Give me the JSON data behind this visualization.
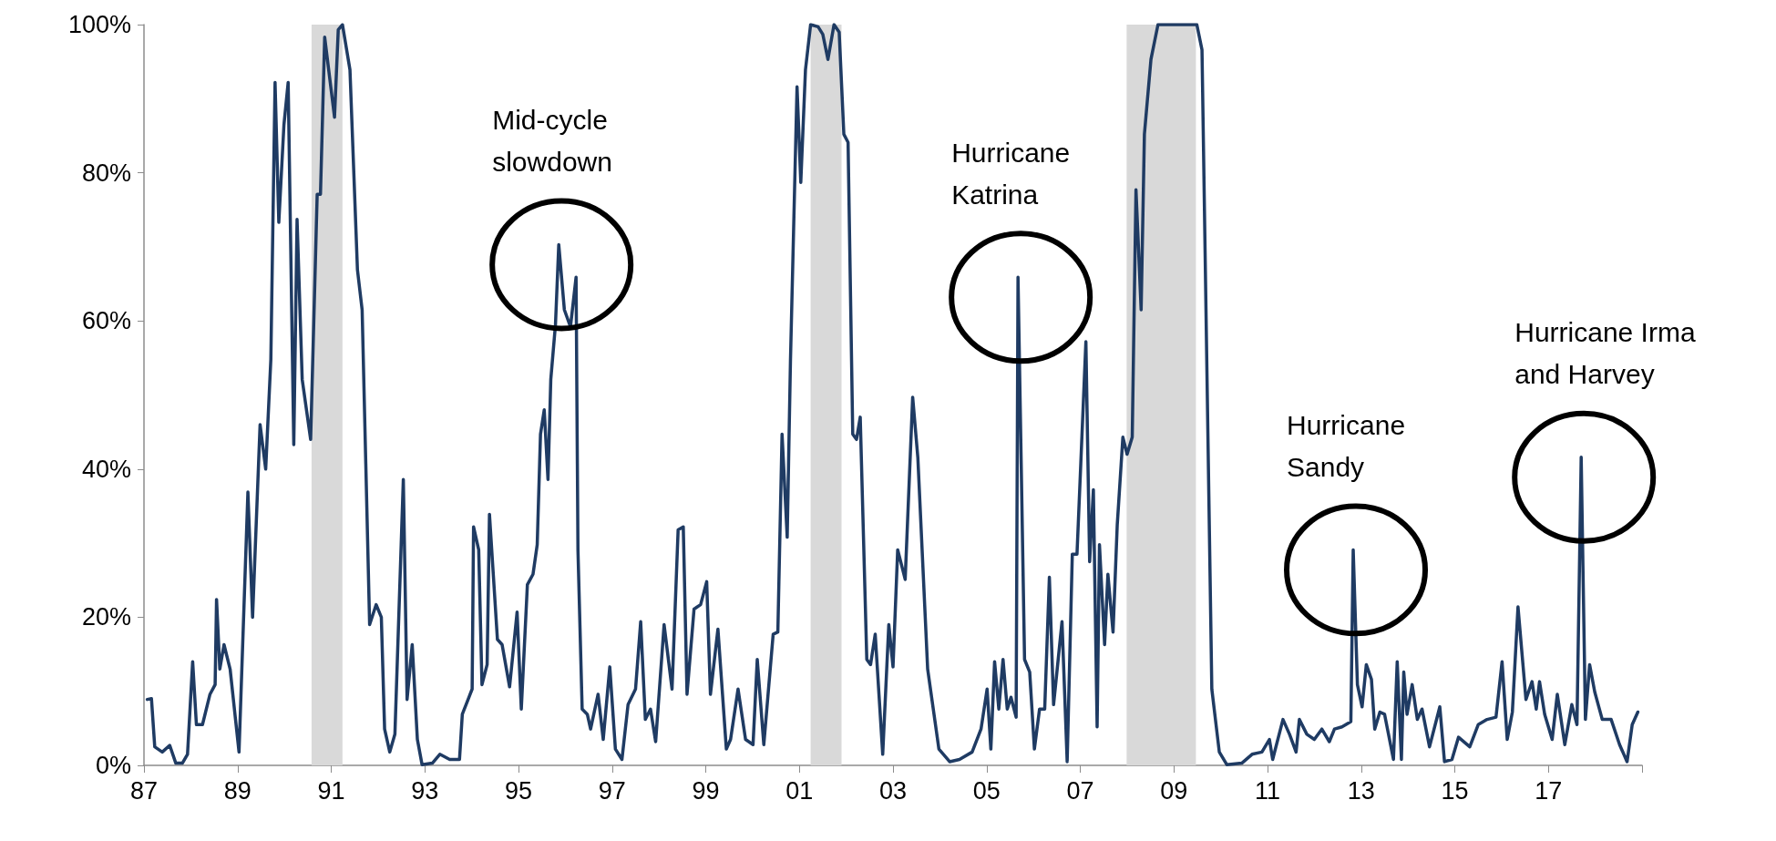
{
  "chart_data": {
    "type": "line",
    "x": [
      1987.07,
      1987.16,
      1987.23,
      1987.39,
      1987.55,
      1987.68,
      1987.82,
      1987.93,
      1988.04,
      1988.12,
      1988.25,
      1988.41,
      1988.52,
      1988.55,
      1988.62,
      1988.71,
      1988.84,
      1989.03,
      1989.22,
      1989.32,
      1989.48,
      1989.6,
      1989.71,
      1989.8,
      1989.88,
      1989.99,
      1990.08,
      1990.2,
      1990.27,
      1990.38,
      1990.56,
      1990.7,
      1990.77,
      1990.86,
      1991.07,
      1991.15,
      1991.24,
      1991.4,
      1991.56,
      1991.66,
      1991.82,
      1991.96,
      1992.07,
      1992.14,
      1992.25,
      1992.36,
      1992.54,
      1992.62,
      1992.73,
      1992.84,
      1992.94,
      1993.16,
      1993.32,
      1993.53,
      1993.74,
      1993.8,
      1994.01,
      1994.04,
      1994.15,
      1994.22,
      1994.33,
      1994.38,
      1994.55,
      1994.65,
      1994.81,
      1994.97,
      1995.06,
      1995.19,
      1995.31,
      1995.4,
      1995.47,
      1995.55,
      1995.63,
      1995.69,
      1995.79,
      1995.86,
      1995.98,
      1996.11,
      1996.23,
      1996.27,
      1996.36,
      1996.47,
      1996.54,
      1996.7,
      1996.81,
      1996.95,
      1997.07,
      1997.21,
      1997.34,
      1997.5,
      1997.61,
      1997.71,
      1997.82,
      1997.93,
      1998.11,
      1998.28,
      1998.41,
      1998.52,
      1998.6,
      1998.75,
      1998.89,
      1999.02,
      1999.1,
      1999.26,
      1999.44,
      1999.53,
      1999.69,
      1999.85,
      2000.01,
      2000.1,
      2000.24,
      2000.44,
      2000.54,
      2000.63,
      2000.74,
      2000.81,
      2000.95,
      2001.03,
      2001.13,
      2001.24,
      2001.4,
      2001.5,
      2001.61,
      2001.74,
      2001.85,
      2001.95,
      2002.04,
      2002.14,
      2002.22,
      2002.3,
      2002.44,
      2002.52,
      2002.62,
      2002.78,
      2002.91,
      2003.0,
      2003.1,
      2003.26,
      2003.42,
      2003.53,
      2003.74,
      2003.98,
      2004.21,
      2004.42,
      2004.69,
      2004.88,
      2005.01,
      2005.09,
      2005.17,
      2005.26,
      2005.35,
      2005.44,
      2005.52,
      2005.63,
      2005.67,
      2005.81,
      2005.92,
      2006.02,
      2006.13,
      2006.24,
      2006.34,
      2006.43,
      2006.61,
      2006.72,
      2006.83,
      2006.93,
      2007.12,
      2007.2,
      2007.28,
      2007.36,
      2007.41,
      2007.52,
      2007.59,
      2007.7,
      2007.79,
      2007.91,
      2008.0,
      2008.11,
      2008.19,
      2008.3,
      2008.37,
      2008.51,
      2008.66,
      2009.49,
      2009.6,
      2009.81,
      2009.97,
      2010.13,
      2010.45,
      2010.67,
      2010.88,
      2011.04,
      2011.11,
      2011.33,
      2011.47,
      2011.61,
      2011.68,
      2011.84,
      2012.0,
      2012.16,
      2012.32,
      2012.43,
      2012.59,
      2012.78,
      2012.83,
      2012.92,
      2013.02,
      2013.11,
      2013.22,
      2013.29,
      2013.4,
      2013.5,
      2013.69,
      2013.77,
      2013.86,
      2013.91,
      2013.98,
      2014.09,
      2014.2,
      2014.3,
      2014.46,
      2014.68,
      2014.78,
      2014.94,
      2015.08,
      2015.32,
      2015.5,
      2015.69,
      2015.88,
      2016.01,
      2016.12,
      2016.23,
      2016.35,
      2016.52,
      2016.65,
      2016.74,
      2016.81,
      2016.92,
      2017.08,
      2017.19,
      2017.35,
      2017.5,
      2017.61,
      2017.7,
      2017.79,
      2017.88,
      2017.99,
      2018.15,
      2018.34,
      2018.52,
      2018.68,
      2018.79,
      2018.91
    ],
    "series": [
      {
        "color": "#1f3b63",
        "values": [
          8.9,
          9.0,
          2.5,
          1.8,
          2.7,
          0.3,
          0.3,
          1.5,
          14.0,
          5.5,
          5.5,
          9.6,
          10.9,
          22.4,
          13.0,
          16.3,
          13.0,
          1.8,
          36.9,
          20.0,
          46.0,
          40.0,
          54.8,
          92.2,
          73.3,
          86.5,
          92.2,
          43.3,
          73.7,
          52.1,
          44.0,
          77.1,
          77.1,
          98.3,
          87.5,
          99.3,
          100,
          93.9,
          66.9,
          61.5,
          19.0,
          21.7,
          20.0,
          4.9,
          1.8,
          4.2,
          38.6,
          8.9,
          16.3,
          3.5,
          0.1,
          0.3,
          1.5,
          0.8,
          0.8,
          6.9,
          10.3,
          32.2,
          29.1,
          10.9,
          13.6,
          33.9,
          17.0,
          16.3,
          10.6,
          20.7,
          7.6,
          24.4,
          25.8,
          29.8,
          44.7,
          48.0,
          38.6,
          52.1,
          59.5,
          70.3,
          61.5,
          59.2,
          65.9,
          29.1,
          7.6,
          6.9,
          4.9,
          9.6,
          3.5,
          13.3,
          2.2,
          0.8,
          8.2,
          10.3,
          19.4,
          6.2,
          7.6,
          3.2,
          19.0,
          10.3,
          31.8,
          32.2,
          9.6,
          21.1,
          21.7,
          24.8,
          9.6,
          18.4,
          2.2,
          3.5,
          10.3,
          3.5,
          2.8,
          14.3,
          2.8,
          17.7,
          18.0,
          44.7,
          30.8,
          54.8,
          91.6,
          78.7,
          93.9,
          100,
          99.7,
          98.7,
          95.3,
          100,
          99.0,
          85.2,
          84.1,
          44.7,
          44.0,
          47.0,
          14.3,
          13.6,
          17.7,
          1.5,
          19.0,
          13.3,
          29.1,
          25.1,
          49.7,
          41.6,
          13.0,
          2.2,
          0.5,
          0.8,
          1.8,
          4.9,
          10.3,
          2.2,
          14.0,
          7.6,
          14.3,
          7.6,
          9.2,
          6.5,
          65.9,
          14.3,
          12.6,
          2.2,
          7.6,
          7.6,
          25.4,
          8.2,
          19.4,
          0.5,
          28.5,
          28.5,
          57.2,
          27.5,
          37.2,
          5.2,
          29.8,
          16.3,
          25.8,
          18.0,
          32.5,
          44.3,
          42.0,
          44.3,
          77.7,
          61.5,
          85.2,
          95.3,
          100,
          100,
          96.6,
          10.3,
          1.8,
          0.1,
          0.3,
          1.5,
          1.8,
          3.5,
          0.8,
          6.2,
          4.2,
          1.8,
          6.2,
          4.2,
          3.5,
          4.9,
          3.2,
          4.9,
          5.2,
          5.9,
          29.1,
          10.9,
          7.9,
          13.6,
          11.6,
          4.9,
          7.2,
          6.9,
          0.8,
          14.0,
          0.8,
          12.6,
          6.9,
          10.9,
          6.2,
          7.6,
          2.5,
          7.9,
          0.5,
          0.8,
          3.8,
          2.5,
          5.5,
          6.2,
          6.5,
          14.0,
          3.5,
          7.2,
          21.4,
          8.9,
          11.3,
          7.6,
          11.3,
          6.9,
          3.5,
          9.6,
          2.8,
          8.2,
          5.5,
          41.6,
          6.2,
          13.6,
          9.9,
          6.2,
          6.2,
          2.8,
          0.5,
          5.5,
          7.2
        ]
      }
    ],
    "xlim": [
      1987,
      2019
    ],
    "xticks": [
      {
        "value": 1987,
        "label": "87"
      },
      {
        "value": 1989,
        "label": "89"
      },
      {
        "value": 1991,
        "label": "91"
      },
      {
        "value": 1993,
        "label": "93"
      },
      {
        "value": 1995,
        "label": "95"
      },
      {
        "value": 1997,
        "label": "97"
      },
      {
        "value": 1999,
        "label": "99"
      },
      {
        "value": 2001,
        "label": "01"
      },
      {
        "value": 2003,
        "label": "03"
      },
      {
        "value": 2005,
        "label": "05"
      },
      {
        "value": 2007,
        "label": "07"
      },
      {
        "value": 2009,
        "label": "09"
      },
      {
        "value": 2011,
        "label": "11"
      },
      {
        "value": 2013,
        "label": "13"
      },
      {
        "value": 2015,
        "label": "15"
      },
      {
        "value": 2017,
        "label": "17"
      },
      {
        "value": 2019,
        "label": null
      }
    ],
    "ylim": [
      0,
      100
    ],
    "yticks": [
      {
        "value": 0,
        "label": "0%"
      },
      {
        "value": 20,
        "label": "20%"
      },
      {
        "value": 40,
        "label": "40%"
      },
      {
        "value": 60,
        "label": "60%"
      },
      {
        "value": 80,
        "label": "80%"
      },
      {
        "value": 100,
        "label": "100%"
      }
    ],
    "bands": [
      {
        "axis": "x",
        "from": 1990.58,
        "to": 1991.24,
        "color": "#d9d9d9"
      },
      {
        "axis": "x",
        "from": 2001.24,
        "to": 2001.9,
        "color": "#d9d9d9"
      },
      {
        "axis": "x",
        "from": 2007.99,
        "to": 2009.47,
        "color": "#d9d9d9"
      }
    ],
    "annotations": [
      {
        "text": "Mid-cycle\nslowdown",
        "x": 1995.86,
        "y": 70.3
      },
      {
        "text": "Hurricane\nKatrina",
        "x": 2005.67,
        "y": 65.9
      },
      {
        "text": "Hurricane\nSandy",
        "x": 2012.83,
        "y": 29.1
      },
      {
        "text": "Hurricane Irma\nand Harvey",
        "x": 2017.7,
        "y": 41.6
      }
    ],
    "grid": false,
    "marker": "none",
    "line_style": "solid"
  }
}
